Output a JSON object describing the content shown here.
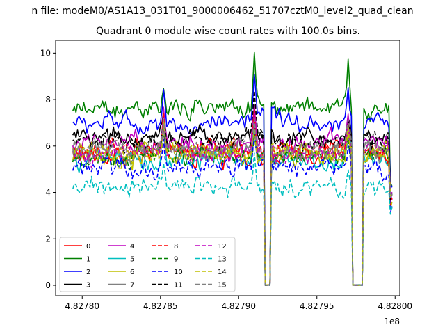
{
  "chart_data": {
    "type": "line",
    "suptitle": "n file: modeM0/AS1A13_031T01_9000006462_51707cztM0_level2_quad_clean",
    "title": "Quadrant 0 module wise count rates with 100.0s bins.",
    "xlabel": "",
    "ylabel": "",
    "x_offset_label": "1e8",
    "xlim": [
      4.827783,
      4.828003
    ],
    "ylim": [
      -0.45,
      10.55
    ],
    "x_ticks": [
      4.8278,
      4.82785,
      4.8279,
      4.82795,
      4.828
    ],
    "x_tick_labels": [
      "4.82780",
      "4.82785",
      "4.82790",
      "4.82795",
      "4.82800"
    ],
    "y_ticks": [
      0,
      2,
      4,
      6,
      8,
      10
    ],
    "y_tick_labels": [
      "0",
      "2",
      "4",
      "6",
      "8",
      "10"
    ],
    "x_start": 4.827794,
    "x_end": 4.827998,
    "n_points": 205,
    "gaps": [
      [
        4.827916,
        4.827921
      ],
      [
        4.827972,
        4.82798
      ]
    ],
    "legend_position": "lower-left",
    "series": [
      {
        "name": "0",
        "color": "#ff0000",
        "dash": "solid",
        "base": 5.6
      },
      {
        "name": "1",
        "color": "#008000",
        "dash": "solid",
        "base": 7.6
      },
      {
        "name": "2",
        "color": "#0000ff",
        "dash": "solid",
        "base": 7.0
      },
      {
        "name": "3",
        "color": "#000000",
        "dash": "solid",
        "base": 6.3
      },
      {
        "name": "4",
        "color": "#bf00bf",
        "dash": "solid",
        "base": 6.1
      },
      {
        "name": "5",
        "color": "#00bfbf",
        "dash": "solid",
        "base": 5.4
      },
      {
        "name": "6",
        "color": "#bfbf00",
        "dash": "solid",
        "base": 5.6
      },
      {
        "name": "7",
        "color": "#808080",
        "dash": "solid",
        "base": 5.7
      },
      {
        "name": "8",
        "color": "#ff0000",
        "dash": "dashed",
        "base": 5.8
      },
      {
        "name": "9",
        "color": "#008000",
        "dash": "dashed",
        "base": 5.5
      },
      {
        "name": "10",
        "color": "#0000ff",
        "dash": "dashed",
        "base": 5.0
      },
      {
        "name": "11",
        "color": "#000000",
        "dash": "dashed",
        "base": 6.2
      },
      {
        "name": "12",
        "color": "#bf00bf",
        "dash": "dashed",
        "base": 5.7
      },
      {
        "name": "13",
        "color": "#00bfbf",
        "dash": "dashed",
        "base": 4.2
      },
      {
        "name": "14",
        "color": "#bfbf00",
        "dash": "dashed",
        "base": 5.7
      },
      {
        "name": "15",
        "color": "#808080",
        "dash": "dashed",
        "base": 5.9
      }
    ],
    "peaks": [
      {
        "x": 4.82791,
        "heights": [
          1.8,
          2.5,
          1.8,
          1.5,
          1.6,
          1.4,
          1.4,
          1.6,
          1.8,
          1.5,
          1.5,
          1.6,
          1.6,
          1.4,
          1.5,
          1.5
        ]
      },
      {
        "x": 4.827852,
        "heights": [
          1.2,
          0.8,
          1.2,
          1.2,
          1.4,
          1.6,
          1.1,
          1.3,
          1.4,
          1.0,
          1.2,
          1.1,
          1.2,
          0.9,
          1.2,
          1.2
        ]
      },
      {
        "x": 4.82797,
        "heights": [
          1.1,
          1.9,
          1.5,
          0.8,
          0.9,
          0.9,
          0.9,
          1.0,
          1.1,
          0.9,
          0.9,
          0.9,
          1.0,
          0.8,
          0.9,
          1.0
        ]
      }
    ]
  }
}
